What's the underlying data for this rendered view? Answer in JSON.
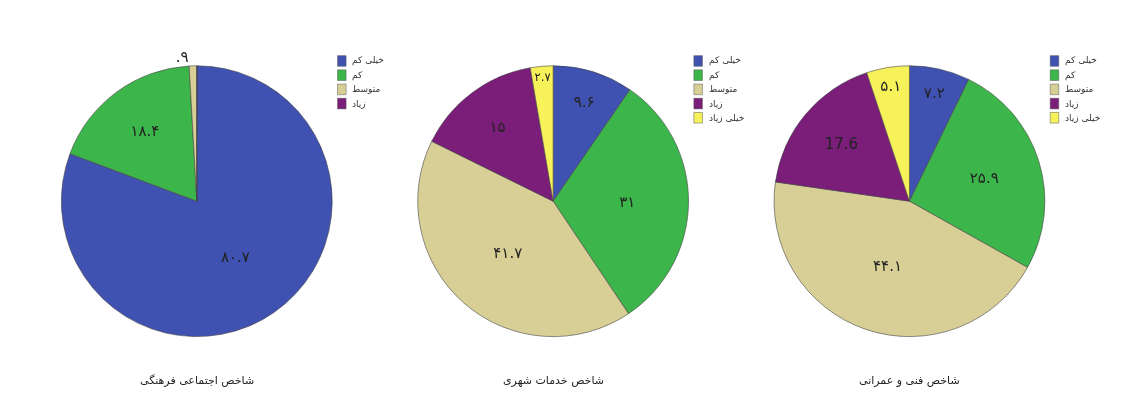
{
  "chart_data": [
    {
      "type": "pie",
      "title": "شاخص اجتماعی فرهنگی",
      "categories": [
        "خیلی کم",
        "کم",
        "متوسط",
        "زیاد"
      ],
      "values": [
        80.7,
        18.4,
        0.9,
        0
      ],
      "colors": [
        "#3f51b1",
        "#3cb54a",
        "#d8cf96",
        "#7a1e7a"
      ],
      "value_labels": [
        "۸۰.۷",
        "۱۸.۴",
        ".۹",
        null
      ],
      "legend": "top right"
    },
    {
      "type": "pie",
      "title": "شاخص خدمات شهری",
      "categories": [
        "خیلی کم",
        "کم",
        "متوسط",
        "زیاد",
        "خیلی زیاد"
      ],
      "values": [
        9.6,
        31,
        41.7,
        15,
        2.7
      ],
      "colors": [
        "#3f51b1",
        "#3cb54a",
        "#d8cf96",
        "#7a1e7a",
        "#f8f25a"
      ],
      "value_labels": [
        "۹.۶",
        "۳۱",
        "۴۱.۷",
        "۱۵",
        "۲.۷"
      ],
      "legend": "top right"
    },
    {
      "type": "pie",
      "title": "شاخص فنی و عمرانی",
      "categories": [
        "خیلی کم",
        "کم",
        "متوسط",
        "زیاد",
        "خیلی زیاد"
      ],
      "values": [
        7.2,
        25.9,
        44.1,
        17.6,
        5.1
      ],
      "colors": [
        "#3f51b1",
        "#3cb54a",
        "#d8cf96",
        "#7a1e7a",
        "#f8f25a"
      ],
      "value_labels": [
        "۷.۲",
        "۲۵.۹",
        "۴۴.۱",
        "17.6",
        "۵.۱"
      ],
      "legend": "top right"
    }
  ]
}
